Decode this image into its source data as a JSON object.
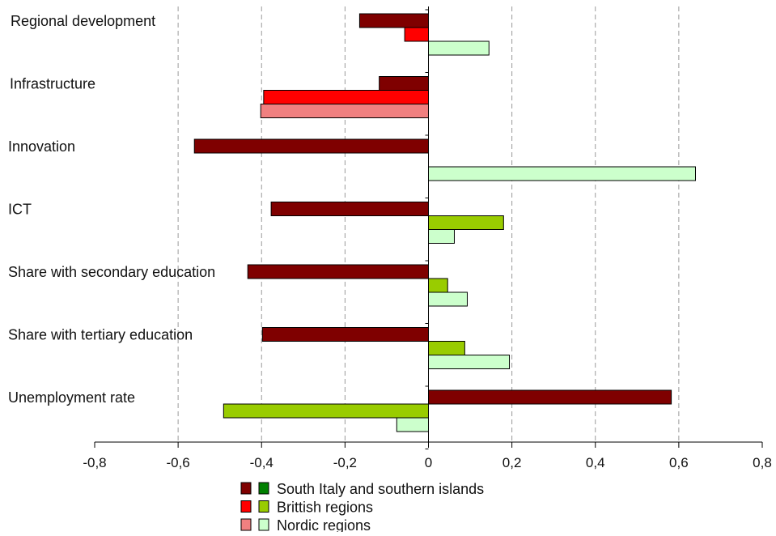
{
  "chart_data": {
    "type": "bar",
    "orientation": "horizontal",
    "categories": [
      "Regional development",
      "Infrastructure",
      "Innovation",
      "ICT",
      "Share with secondary education",
      "Share with tertiary education",
      "Unemployment rate"
    ],
    "bars": [
      {
        "category": "Regional development",
        "slot": 0,
        "value": -0.165,
        "fill": "#7f0000"
      },
      {
        "category": "Regional development",
        "slot": 1,
        "value": -0.057,
        "fill": "#ff0000"
      },
      {
        "category": "Regional development",
        "slot": 2,
        "value": 0.145,
        "fill": "#ccffcc"
      },
      {
        "category": "Infrastructure",
        "slot": 0,
        "value": -0.118,
        "fill": "#7f0000"
      },
      {
        "category": "Infrastructure",
        "slot": 1,
        "value": -0.395,
        "fill": "#ff0000"
      },
      {
        "category": "Infrastructure",
        "slot": 2,
        "value": -0.402,
        "fill": "#f08080"
      },
      {
        "category": "Innovation",
        "slot": 0,
        "value": -0.561,
        "fill": "#7f0000"
      },
      {
        "category": "Innovation",
        "slot": 2,
        "value": 0.64,
        "fill": "#ccffcc"
      },
      {
        "category": "ICT",
        "slot": 0,
        "value": -0.377,
        "fill": "#7f0000"
      },
      {
        "category": "ICT",
        "slot": 1,
        "value": 0.18,
        "fill": "#99cc00"
      },
      {
        "category": "ICT",
        "slot": 2,
        "value": 0.062,
        "fill": "#ccffcc"
      },
      {
        "category": "Share with secondary education",
        "slot": 0,
        "value": -0.433,
        "fill": "#7f0000"
      },
      {
        "category": "Share with secondary education",
        "slot": 1,
        "value": 0.046,
        "fill": "#99cc00"
      },
      {
        "category": "Share with secondary education",
        "slot": 2,
        "value": 0.093,
        "fill": "#ccffcc"
      },
      {
        "category": "Share with tertiary education",
        "slot": 0,
        "value": -0.398,
        "fill": "#7f0000"
      },
      {
        "category": "Share with tertiary education",
        "slot": 1,
        "value": 0.087,
        "fill": "#99cc00"
      },
      {
        "category": "Share with tertiary education",
        "slot": 2,
        "value": 0.194,
        "fill": "#ccffcc"
      },
      {
        "category": "Unemployment rate",
        "slot": 0,
        "value": 0.582,
        "fill": "#7f0000"
      },
      {
        "category": "Unemployment rate",
        "slot": 1,
        "value": -0.491,
        "fill": "#99cc00"
      },
      {
        "category": "Unemployment rate",
        "slot": 2,
        "value": -0.076,
        "fill": "#ccffcc"
      }
    ],
    "xlim": [
      -0.8,
      0.8
    ],
    "x_ticks": [
      -0.8,
      -0.6,
      -0.4,
      -0.2,
      0,
      0.2,
      0.4,
      0.6,
      0.8
    ],
    "x_tick_labels": [
      "-0,8",
      "-0,6",
      "-0,4",
      "-0,2",
      "0",
      "0,2",
      "0,4",
      "0,6",
      "0,8"
    ],
    "gridlines": "dashed vertical",
    "legend": {
      "placement": "bottom",
      "entries": [
        {
          "label": "South Italy and southern islands",
          "colors": [
            "#7f0000",
            "#008000"
          ]
        },
        {
          "label": "Brittish regions",
          "colors": [
            "#ff0000",
            "#99cc00"
          ]
        },
        {
          "label": "Nordic regions",
          "colors": [
            "#f08080",
            "#ccffcc"
          ]
        }
      ]
    },
    "title": "",
    "xlabel": "",
    "ylabel": ""
  }
}
